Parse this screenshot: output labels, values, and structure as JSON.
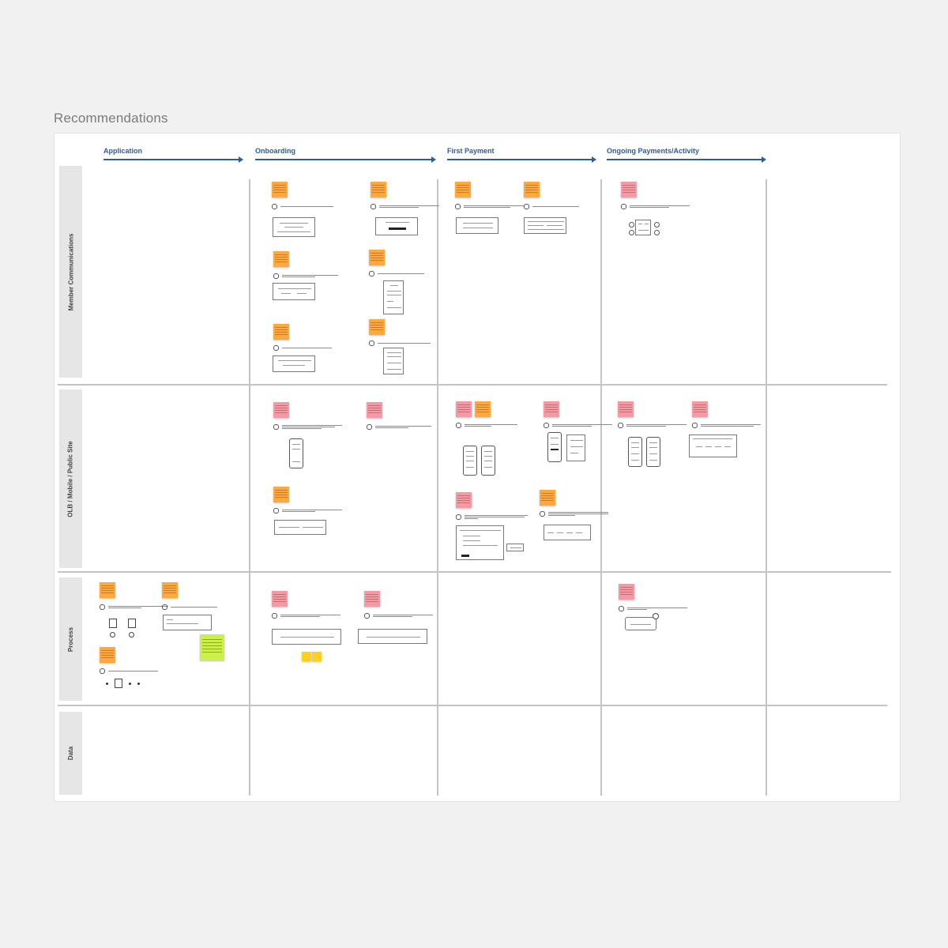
{
  "page": {
    "title": "Recommendations"
  },
  "phases": [
    {
      "label": "Application"
    },
    {
      "label": "Onboarding"
    },
    {
      "label": "First Payment"
    },
    {
      "label": "Ongoing Payments/Activity"
    }
  ],
  "lanes": [
    {
      "label": "Member Communications"
    },
    {
      "label": "OLB / Mobile / Public Site"
    },
    {
      "label": "Process"
    },
    {
      "label": "Data"
    }
  ],
  "colors": {
    "accent": "#2d5c9e",
    "sticky_orange": "#ffa83c",
    "sticky_pink": "#f59aa5",
    "sticky_yellow": "#fcd21e",
    "sticky_green": "#ccf04b",
    "lane_header": "#e6e6e6"
  }
}
